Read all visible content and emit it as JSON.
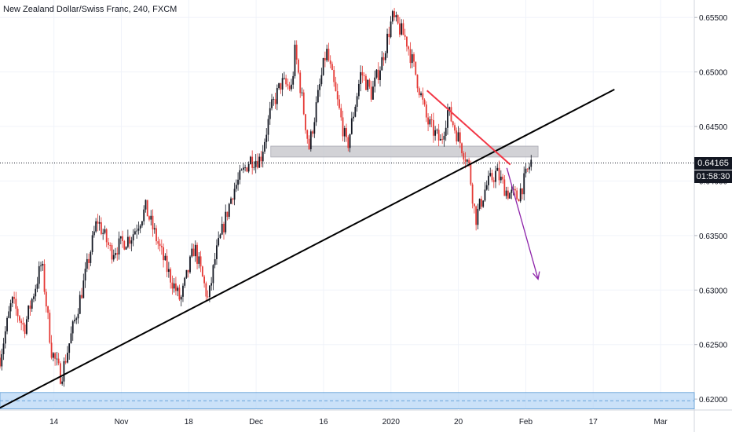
{
  "window": {
    "title": "New Zealand Dollar/Swiss Franc, 240, FXCM"
  },
  "price_badge": {
    "value": "0.64165",
    "countdown": "01:58:30"
  },
  "colors": {
    "up": "#131722",
    "down": "#e53935",
    "trend": "#000000",
    "resistance": "#f23645",
    "arrow": "#8e24aa",
    "zone": "#b3d4f5",
    "box": "#c7c7cc"
  },
  "chart_data": {
    "type": "candlestick",
    "title": "New Zealand Dollar/Swiss Franc, 240, FXCM",
    "xlabel": "",
    "ylabel": "",
    "ylim": [
      0.619,
      0.6566
    ],
    "x_ticks": [
      "14",
      "Nov",
      "18",
      "Dec",
      "16",
      "2020",
      "20",
      "Feb",
      "17",
      "Mar"
    ],
    "y_ticks": [
      "0.65500",
      "0.65000",
      "0.64500",
      "0.64000",
      "0.63500",
      "0.63000",
      "0.62500",
      "0.62000"
    ],
    "grid": true,
    "current_price": 0.64165,
    "price_path": [
      [
        0.0,
        0.6238
      ],
      [
        0.017,
        0.629
      ],
      [
        0.035,
        0.6265
      ],
      [
        0.06,
        0.6325
      ],
      [
        0.074,
        0.6245
      ],
      [
        0.088,
        0.622
      ],
      [
        0.12,
        0.6305
      ],
      [
        0.14,
        0.6365
      ],
      [
        0.16,
        0.6335
      ],
      [
        0.19,
        0.635
      ],
      [
        0.21,
        0.6375
      ],
      [
        0.24,
        0.632
      ],
      [
        0.26,
        0.629
      ],
      [
        0.28,
        0.634
      ],
      [
        0.3,
        0.629
      ],
      [
        0.31,
        0.633
      ],
      [
        0.335,
        0.639
      ],
      [
        0.36,
        0.642
      ],
      [
        0.375,
        0.642
      ],
      [
        0.39,
        0.6465
      ],
      [
        0.405,
        0.649
      ],
      [
        0.42,
        0.6485
      ],
      [
        0.425,
        0.652
      ],
      [
        0.445,
        0.643
      ],
      [
        0.46,
        0.6485
      ],
      [
        0.47,
        0.652
      ],
      [
        0.49,
        0.646
      ],
      [
        0.5,
        0.643
      ],
      [
        0.52,
        0.65
      ],
      [
        0.535,
        0.648
      ],
      [
        0.55,
        0.651
      ],
      [
        0.565,
        0.655
      ],
      [
        0.585,
        0.653
      ],
      [
        0.6,
        0.6495
      ],
      [
        0.615,
        0.6455
      ],
      [
        0.635,
        0.6435
      ],
      [
        0.645,
        0.6465
      ],
      [
        0.66,
        0.644
      ],
      [
        0.675,
        0.6415
      ],
      [
        0.685,
        0.6365
      ],
      [
        0.7,
        0.6395
      ],
      [
        0.715,
        0.6408
      ],
      [
        0.73,
        0.639
      ],
      [
        0.745,
        0.6385
      ],
      [
        0.755,
        0.64
      ],
      [
        0.765,
        0.6418
      ]
    ],
    "annotations": {
      "support_zone": [
        0.6191,
        0.6206
      ],
      "grey_box": [
        0.6422,
        0.6432
      ],
      "trendline": [
        [
          0.0,
          0.6192
        ],
        [
          0.885,
          0.6484
        ]
      ],
      "resistance_line": [
        [
          0.615,
          0.6483
        ],
        [
          0.735,
          0.6415
        ]
      ],
      "arrow": [
        [
          0.73,
          0.6412
        ],
        [
          0.775,
          0.631
        ]
      ]
    }
  }
}
